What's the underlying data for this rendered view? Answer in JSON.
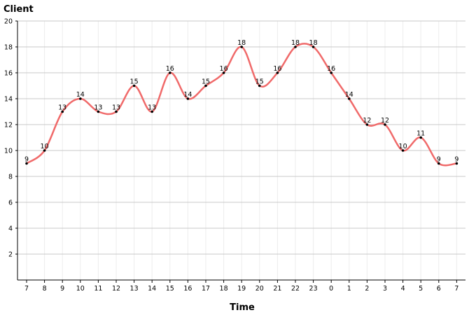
{
  "chart_data": {
    "type": "line",
    "ylabel": "Client",
    "xlabel": "Time",
    "categories": [
      "7",
      "8",
      "9",
      "10",
      "11",
      "12",
      "13",
      "14",
      "15",
      "16",
      "17",
      "18",
      "19",
      "20",
      "21",
      "22",
      "23",
      "0",
      "1",
      "2",
      "3",
      "4",
      "5",
      "6",
      "7"
    ],
    "series": [
      {
        "values": [
          9,
          10,
          13,
          14,
          13,
          13,
          15,
          13,
          16,
          14,
          15,
          16,
          18,
          15,
          16,
          18,
          18,
          16,
          14,
          12,
          12,
          10,
          11,
          9,
          9
        ]
      }
    ],
    "ylim": [
      0,
      20
    ],
    "yticks": [
      2,
      4,
      6,
      8,
      10,
      12,
      14,
      16,
      18,
      20
    ],
    "grid": true,
    "line_color": "#f06a6a",
    "marker_color": "#000000",
    "grid_color": "#c8c8c8",
    "vgrid_color": "#ececec",
    "smooth": true,
    "data_labels": true
  }
}
